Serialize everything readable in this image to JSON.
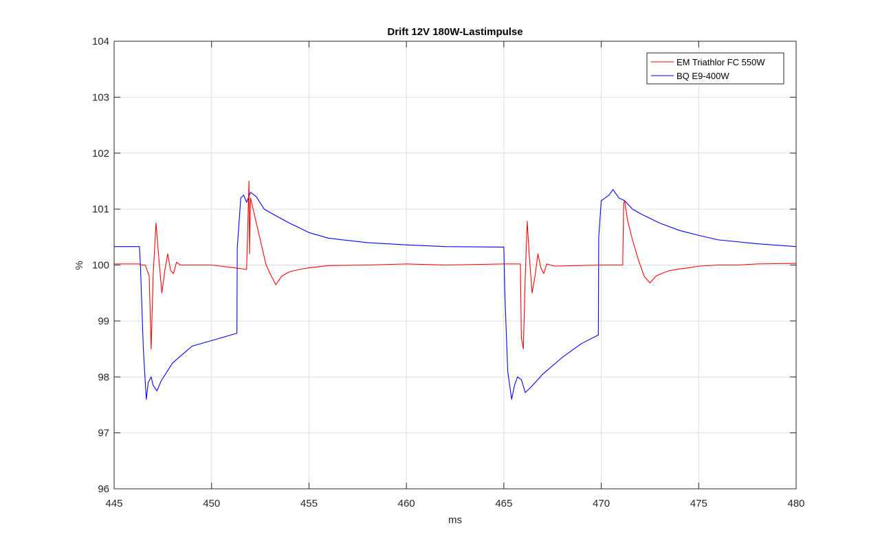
{
  "chart_data": {
    "type": "line",
    "title": "Drift 12V 180W-Lastimpulse",
    "xlabel": "ms",
    "ylabel": "%",
    "xlim": [
      445,
      480
    ],
    "ylim": [
      96,
      104
    ],
    "xticks": [
      445,
      450,
      455,
      460,
      465,
      470,
      475,
      480
    ],
    "yticks": [
      96,
      97,
      98,
      99,
      100,
      101,
      102,
      103,
      104
    ],
    "grid": true,
    "legend_position": "top-right",
    "series": [
      {
        "name": "EM Triathlor FC 550W",
        "color": "#ff0000",
        "x": [
          445,
          446.3,
          446.35,
          446.6,
          446.8,
          446.9,
          447.0,
          447.15,
          447.3,
          447.45,
          447.6,
          447.75,
          447.9,
          448.05,
          448.2,
          448.4,
          450,
          451.2,
          451.8,
          451.92,
          451.95,
          452.0,
          452.2,
          452.5,
          452.8,
          453.1,
          453.3,
          453.6,
          454.0,
          454.5,
          455,
          456,
          458,
          460,
          462,
          465,
          465.85,
          465.9,
          466.0,
          466.1,
          466.2,
          466.3,
          466.45,
          466.6,
          466.75,
          466.9,
          467.05,
          467.2,
          467.4,
          467.6,
          470,
          471.1,
          471.15,
          471.2,
          471.35,
          471.6,
          471.9,
          472.2,
          472.5,
          472.8,
          473.1,
          473.5,
          474.0,
          474.5,
          475,
          476,
          477,
          478,
          480
        ],
        "y": [
          100.02,
          100.02,
          100.0,
          100.0,
          99.8,
          98.5,
          99.8,
          100.75,
          100.1,
          99.5,
          99.9,
          100.2,
          99.9,
          99.85,
          100.05,
          100.0,
          100.0,
          99.95,
          99.92,
          101.5,
          100.2,
          101.2,
          100.9,
          100.45,
          100.0,
          99.78,
          99.65,
          99.8,
          99.88,
          99.92,
          99.95,
          99.99,
          100.0,
          100.02,
          100.0,
          100.02,
          100.02,
          98.7,
          98.5,
          99.8,
          100.78,
          100.2,
          99.5,
          99.8,
          100.2,
          99.95,
          99.85,
          100.02,
          100.0,
          99.98,
          100.0,
          100.0,
          101.1,
          101.15,
          100.8,
          100.45,
          100.1,
          99.8,
          99.68,
          99.8,
          99.85,
          99.9,
          99.93,
          99.95,
          99.98,
          100.0,
          100.0,
          100.02,
          100.03
        ]
      },
      {
        "name": "BQ E9-400W",
        "color": "#0000ff",
        "x": [
          445,
          446.3,
          446.35,
          446.5,
          446.65,
          446.75,
          446.9,
          447.0,
          447.2,
          447.4,
          448,
          449,
          450,
          451,
          451.3,
          451.32,
          451.5,
          451.65,
          451.8,
          452.0,
          452.3,
          452.7,
          453.2,
          454,
          455,
          456,
          458,
          460,
          462,
          465,
          465.05,
          465.2,
          465.4,
          465.55,
          465.7,
          465.9,
          466.1,
          466.4,
          467,
          468,
          469,
          469.85,
          469.87,
          470.0,
          470.2,
          470.4,
          470.6,
          470.9,
          471.2,
          471.6,
          472,
          473,
          474,
          475,
          476,
          478,
          480
        ],
        "y": [
          100.33,
          100.33,
          100.0,
          98.5,
          97.6,
          97.9,
          98.0,
          97.85,
          97.75,
          97.92,
          98.25,
          98.55,
          98.65,
          98.75,
          98.78,
          100.3,
          101.2,
          101.25,
          101.12,
          101.3,
          101.22,
          101.0,
          100.9,
          100.75,
          100.58,
          100.48,
          100.4,
          100.36,
          100.33,
          100.32,
          99.5,
          98.1,
          97.6,
          97.85,
          98.0,
          97.95,
          97.72,
          97.82,
          98.05,
          98.35,
          98.6,
          98.75,
          100.5,
          101.15,
          101.2,
          101.25,
          101.35,
          101.2,
          101.15,
          101.0,
          100.92,
          100.75,
          100.62,
          100.53,
          100.45,
          100.38,
          100.33
        ]
      }
    ]
  }
}
